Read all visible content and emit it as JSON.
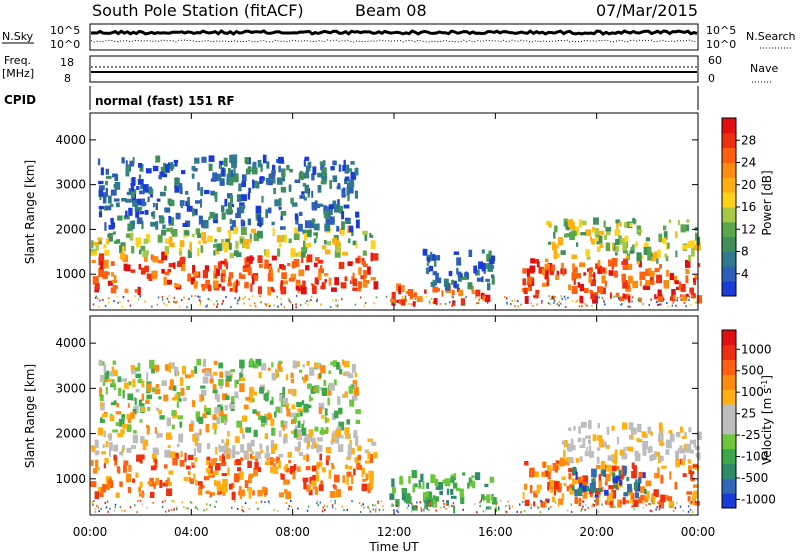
{
  "header": {
    "station": "South Pole Station (fitACF)",
    "beam": "Beam 08",
    "date": "07/Mar/2015"
  },
  "params": {
    "nsky_label": "N.Sky",
    "nsearch_label": "N.Search",
    "log_low": "10^0",
    "log_high": "10^5",
    "freq_label_1": "Freq.",
    "freq_label_2": "[MHz]",
    "freq_ticks": [
      "18",
      "8"
    ],
    "nave_label": "Nave",
    "nave_ticks": [
      "60",
      "0"
    ],
    "cpid_label": "CPID",
    "cpid_value": "normal (fast) 151 RF"
  },
  "chart_data": [
    {
      "type": "heatmap",
      "name": "power",
      "ylabel": "Slant Range [km]",
      "ylim": [
        200,
        4600
      ],
      "yticks": [
        "1000",
        "2000",
        "3000",
        "4000"
      ],
      "xlim": [
        "00:00",
        "24:00"
      ],
      "colorbar": {
        "label": "Power [dB]",
        "ticks": [
          "4",
          "8",
          "12",
          "16",
          "20",
          "24",
          "28"
        ],
        "colors": [
          "#1a3bd8",
          "#2d5fb8",
          "#2f7a8c",
          "#3e8f5a",
          "#5aa84a",
          "#a8c84a",
          "#ffd21a",
          "#ffb010",
          "#ff8a10",
          "#ff6010",
          "#ee3010",
          "#e01010"
        ],
        "range": [
          0,
          30
        ]
      },
      "data": [
        {
          "t_start": 0.0,
          "t_end": 11.2,
          "r_min": 600,
          "r_max": 1400,
          "level": "high"
        },
        {
          "t_start": 0.0,
          "t_end": 11.2,
          "r_min": 1400,
          "r_max": 2000,
          "level": "mid"
        },
        {
          "t_start": 0.3,
          "t_end": 10.5,
          "r_min": 2000,
          "r_max": 3600,
          "level": "low"
        },
        {
          "t_start": 11.8,
          "t_end": 15.6,
          "r_min": 300,
          "r_max": 700,
          "level": "high"
        },
        {
          "t_start": 13.0,
          "t_end": 16.0,
          "r_min": 700,
          "r_max": 1500,
          "level": "low"
        },
        {
          "t_start": 17.0,
          "t_end": 24.0,
          "r_min": 400,
          "r_max": 1300,
          "level": "high"
        },
        {
          "t_start": 18.0,
          "t_end": 24.0,
          "r_min": 1300,
          "r_max": 2200,
          "level": "mid"
        }
      ]
    },
    {
      "type": "heatmap",
      "name": "velocity",
      "ylabel": "Slant Range [km]",
      "xlabel": "Time UT",
      "ylim": [
        200,
        4600
      ],
      "yticks": [
        "1000",
        "2000",
        "3000",
        "4000"
      ],
      "xticks": [
        "00:00",
        "04:00",
        "08:00",
        "12:00",
        "16:00",
        "20:00",
        "00:00"
      ],
      "xlim": [
        "00:00",
        "24:00"
      ],
      "colorbar": {
        "label": "Velocity [m s^-1]",
        "ticks": [
          "1000",
          "500",
          "100",
          "25",
          "-25",
          "-100",
          "-500",
          "-1000"
        ],
        "colors": [
          "#1a3bd8",
          "#2f6ab8",
          "#2f8a6a",
          "#3aa84a",
          "#6cc83a",
          "#bdbdbd",
          "#bdbdbd",
          "#ffb010",
          "#ff8a10",
          "#ff6010",
          "#ee3010",
          "#e01010"
        ],
        "range": [
          -1000,
          1000
        ]
      },
      "data": [
        {
          "t_start": 0.0,
          "t_end": 11.2,
          "r_min": 600,
          "r_max": 1500,
          "level": "negative"
        },
        {
          "t_start": 0.0,
          "t_end": 11.2,
          "r_min": 1500,
          "r_max": 2000,
          "level": "zero"
        },
        {
          "t_start": 0.3,
          "t_end": 10.5,
          "r_min": 2000,
          "r_max": 3600,
          "level": "mixed"
        },
        {
          "t_start": 11.8,
          "t_end": 16.0,
          "r_min": 300,
          "r_max": 1100,
          "level": "positive-low"
        },
        {
          "t_start": 17.0,
          "t_end": 24.0,
          "r_min": 400,
          "r_max": 1400,
          "level": "negative"
        },
        {
          "t_start": 19.0,
          "t_end": 22.0,
          "r_min": 600,
          "r_max": 1200,
          "level": "positive-high"
        },
        {
          "t_start": 18.5,
          "t_end": 24.0,
          "r_min": 1400,
          "r_max": 2200,
          "level": "zero"
        }
      ]
    }
  ]
}
